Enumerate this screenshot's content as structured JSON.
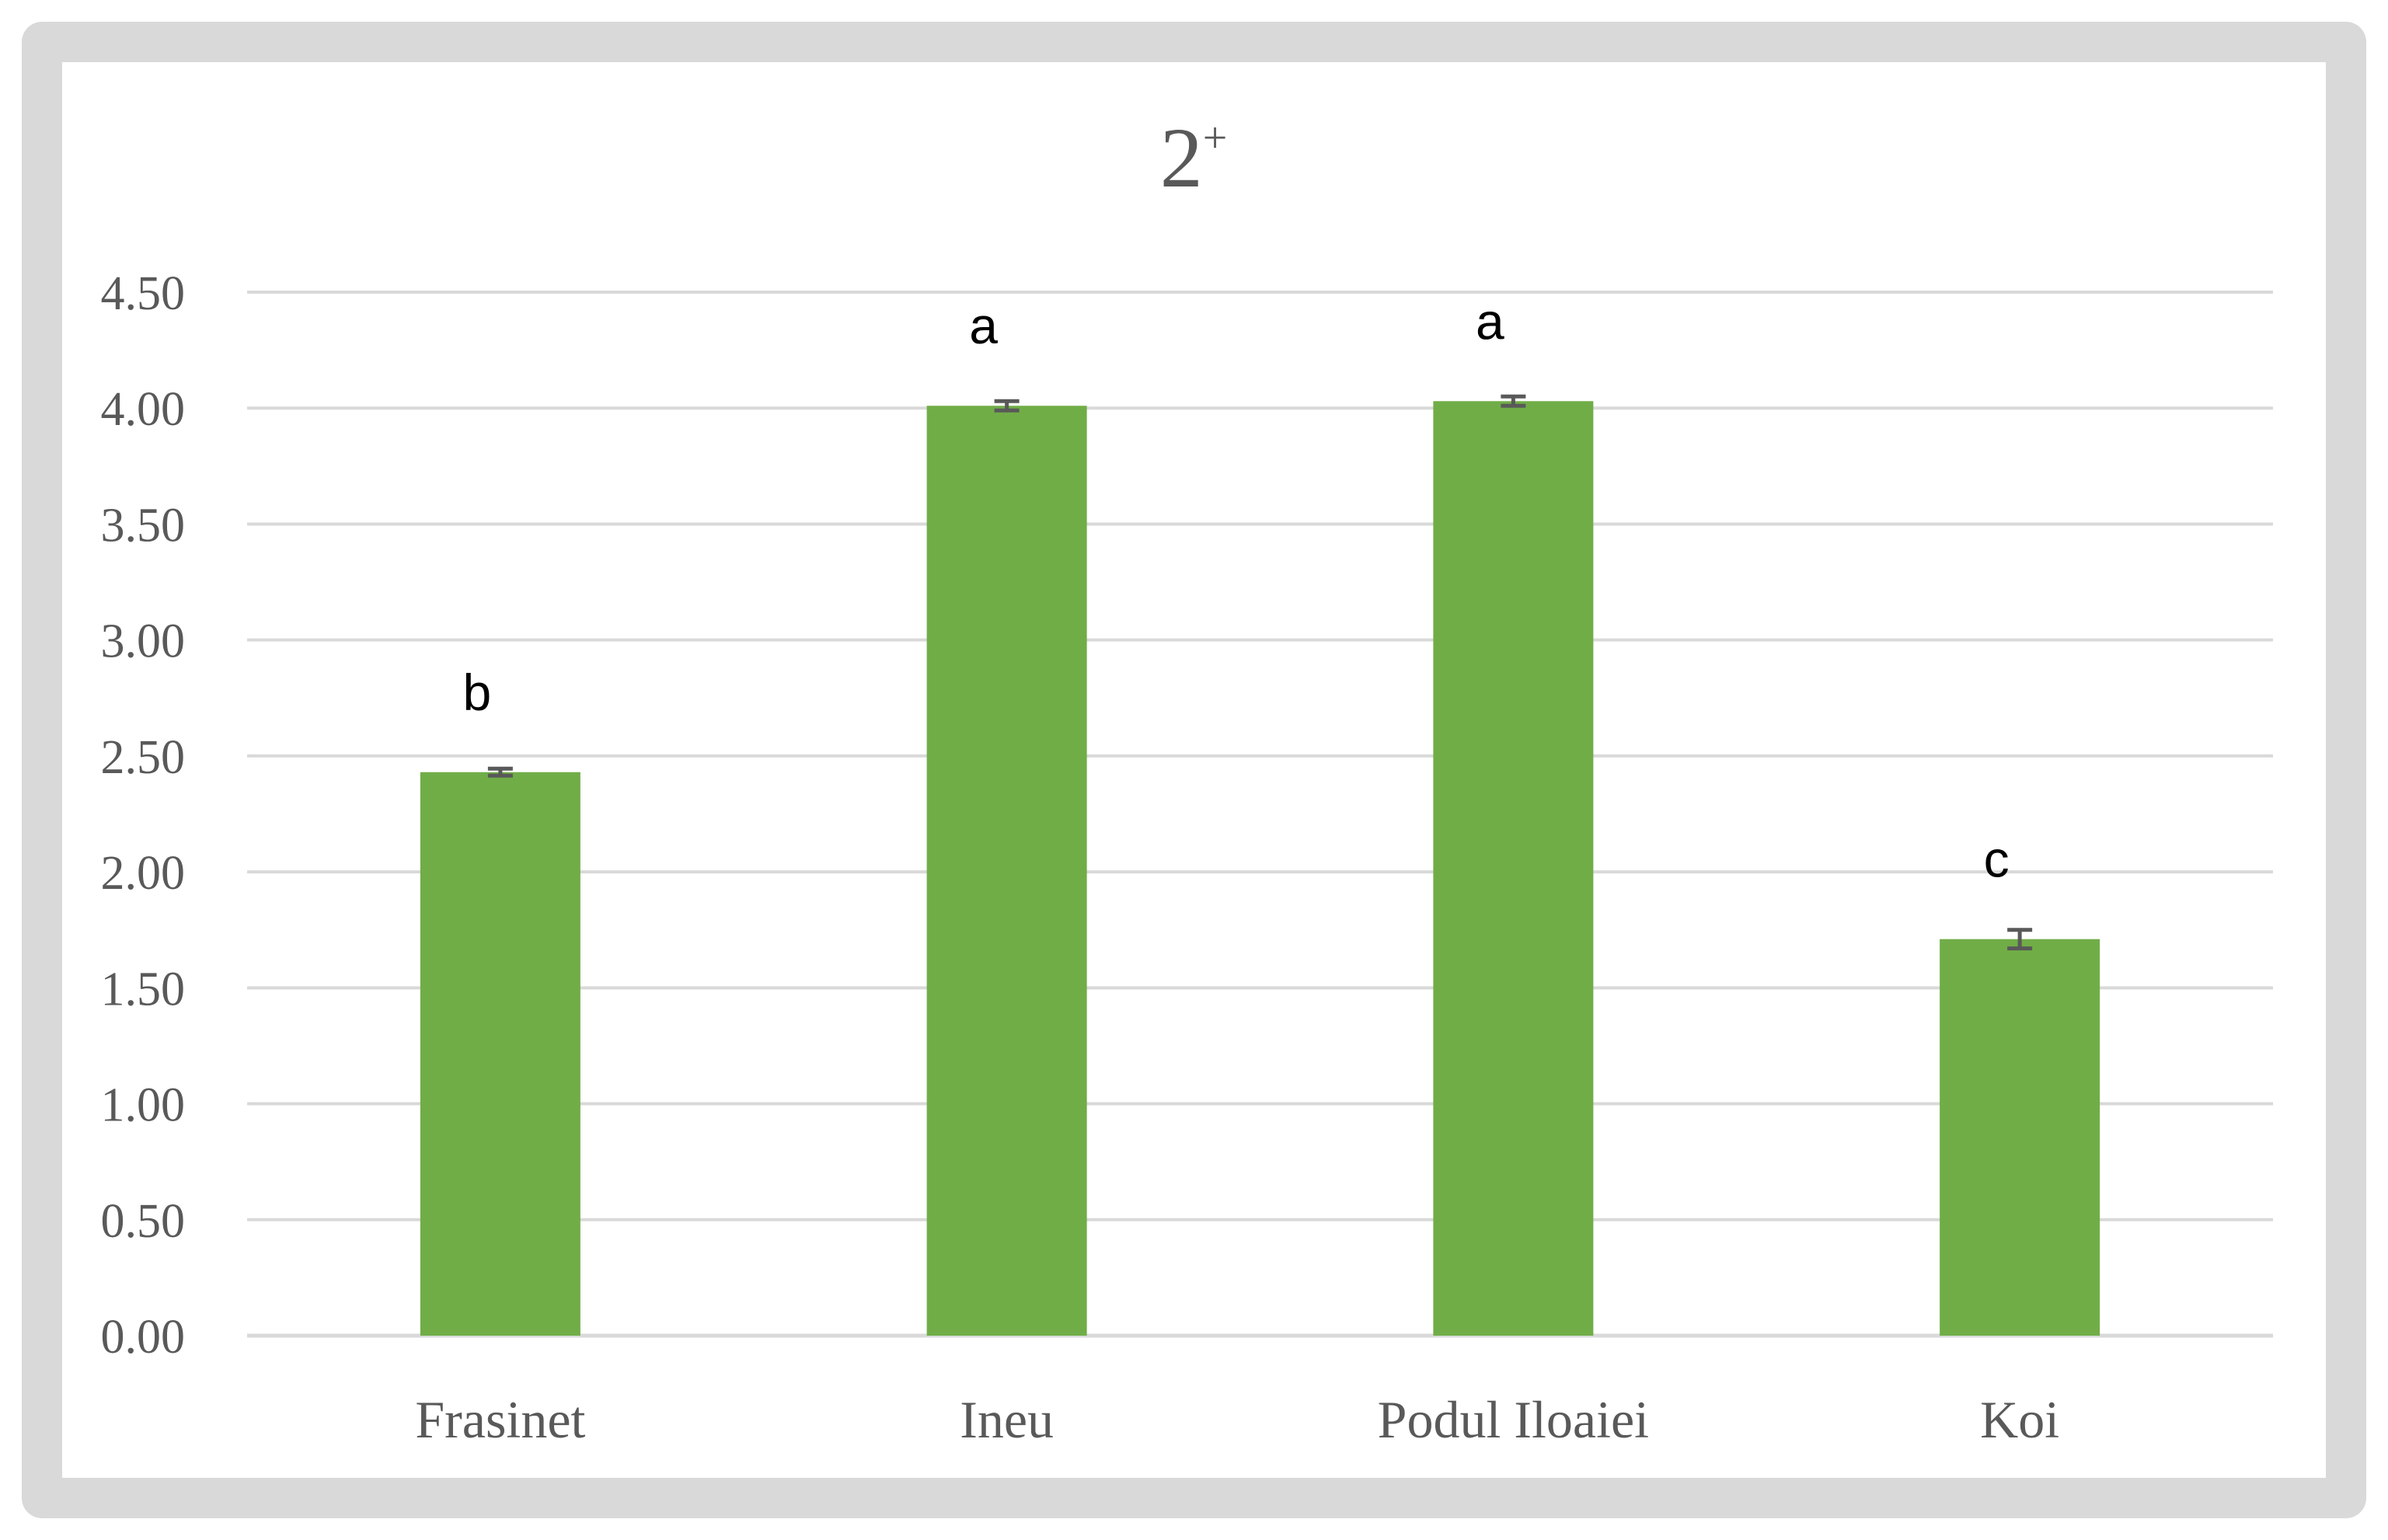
{
  "chart_data": {
    "type": "bar",
    "title": "2",
    "title_superscript": "+",
    "xlabel": "",
    "ylabel": "",
    "categories": [
      "Frasinet",
      "Ineu",
      "Podul Iloaiei",
      "Koi"
    ],
    "values": [
      2.43,
      4.01,
      4.03,
      1.71
    ],
    "error": [
      0.015,
      0.02,
      0.02,
      0.04
    ],
    "significance": [
      "b",
      "a",
      "a",
      "c"
    ],
    "yticks": [
      "0.00",
      "0.50",
      "1.00",
      "1.50",
      "2.00",
      "2.50",
      "3.00",
      "3.50",
      "4.00",
      "4.50"
    ],
    "ylim": [
      0,
      4.5
    ],
    "grid": true,
    "legend": "none",
    "bar_color": "#70ad47",
    "errorbar_color": "#595959",
    "grid_color": "#d9d9d9"
  }
}
